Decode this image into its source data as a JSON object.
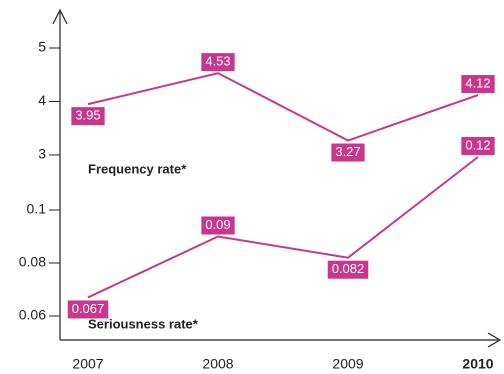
{
  "chart_data": [
    {
      "type": "line",
      "categories": [
        "2007",
        "2008",
        "2009",
        "2010"
      ],
      "series": [
        {
          "name": "Frequency rate*",
          "color": "#c8378c",
          "values": [
            3.95,
            4.53,
            3.27,
            4.12
          ]
        }
      ],
      "ylim": [
        2.7,
        5.4
      ],
      "yticks": [
        3,
        4,
        5
      ]
    },
    {
      "type": "line",
      "categories": [
        "2007",
        "2008",
        "2009",
        "2010"
      ],
      "series": [
        {
          "name": "Seriousness rate*",
          "color": "#c8378c",
          "values": [
            0.067,
            0.09,
            0.082,
            0.12
          ]
        }
      ],
      "ylim": [
        0.052,
        0.122
      ],
      "yticks": [
        0.06,
        0.08,
        0.1
      ]
    }
  ]
}
